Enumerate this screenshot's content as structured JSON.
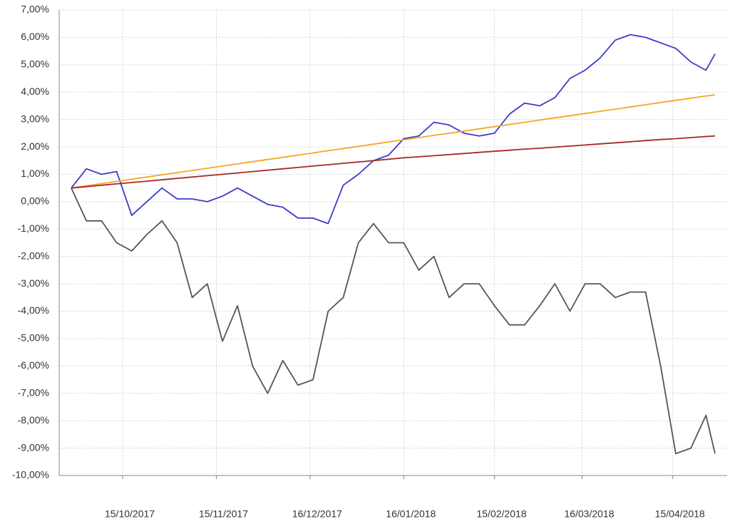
{
  "chart_data": {
    "type": "line",
    "x": [
      "28/09/2017",
      "03/10/2017",
      "08/10/2017",
      "13/10/2017",
      "18/10/2017",
      "23/10/2017",
      "28/10/2017",
      "02/11/2017",
      "07/11/2017",
      "12/11/2017",
      "17/11/2017",
      "22/11/2017",
      "27/11/2017",
      "02/12/2017",
      "07/12/2017",
      "12/12/2017",
      "17/12/2017",
      "22/12/2017",
      "27/12/2017",
      "01/01/2018",
      "06/01/2018",
      "11/01/2018",
      "16/01/2018",
      "21/01/2018",
      "26/01/2018",
      "31/01/2018",
      "05/02/2018",
      "10/02/2018",
      "15/02/2018",
      "20/02/2018",
      "25/02/2018",
      "02/03/2018",
      "07/03/2018",
      "12/03/2018",
      "17/03/2018",
      "22/03/2018",
      "27/03/2018",
      "01/04/2018",
      "06/04/2018",
      "11/04/2018",
      "16/04/2018",
      "21/04/2018",
      "26/04/2018",
      "29/04/2018"
    ],
    "series": [
      {
        "color": "#3c3cc8",
        "values": [
          0.5,
          1.2,
          1.0,
          1.1,
          -0.5,
          0.0,
          0.5,
          0.1,
          0.1,
          0.0,
          0.2,
          0.5,
          0.2,
          -0.1,
          -0.2,
          -0.6,
          -0.6,
          -0.8,
          0.6,
          1.0,
          1.5,
          1.7,
          2.3,
          2.4,
          2.9,
          2.8,
          2.5,
          2.4,
          2.5,
          3.2,
          3.6,
          3.5,
          3.8,
          4.5,
          4.8,
          5.25,
          5.9,
          6.1,
          6.0,
          5.8,
          5.6,
          5.1,
          4.8,
          5.4
        ]
      },
      {
        "color": "#f5a623",
        "values": [
          0.5,
          0.58,
          0.66,
          0.74,
          0.82,
          0.9,
          0.98,
          1.06,
          1.14,
          1.22,
          1.3,
          1.38,
          1.46,
          1.54,
          1.62,
          1.7,
          1.78,
          1.86,
          1.94,
          2.02,
          2.1,
          2.18,
          2.26,
          2.34,
          2.42,
          2.5,
          2.58,
          2.66,
          2.74,
          2.82,
          2.9,
          2.98,
          3.06,
          3.14,
          3.22,
          3.3,
          3.38,
          3.46,
          3.54,
          3.62,
          3.7,
          3.78,
          3.86,
          3.9
        ]
      },
      {
        "color": "#a52a2a",
        "values": [
          0.5,
          0.55,
          0.6,
          0.65,
          0.7,
          0.75,
          0.8,
          0.85,
          0.9,
          0.95,
          1.0,
          1.05,
          1.1,
          1.15,
          1.2,
          1.25,
          1.3,
          1.35,
          1.4,
          1.45,
          1.5,
          1.55,
          1.6,
          1.64,
          1.68,
          1.72,
          1.76,
          1.8,
          1.84,
          1.88,
          1.92,
          1.95,
          1.99,
          2.03,
          2.07,
          2.11,
          2.15,
          2.19,
          2.23,
          2.27,
          2.3,
          2.34,
          2.38,
          2.4
        ]
      },
      {
        "color": "#555555",
        "values": [
          0.5,
          -0.7,
          -0.7,
          -1.5,
          -1.8,
          -1.2,
          -0.7,
          -1.5,
          -3.5,
          -3.0,
          -5.1,
          -3.8,
          -6.0,
          -7.0,
          -5.8,
          -6.7,
          -6.5,
          -4.0,
          -3.5,
          -1.5,
          -0.8,
          -1.5,
          -1.5,
          -2.5,
          -2.0,
          -3.5,
          -3.0,
          -3.0,
          -3.8,
          -4.5,
          -4.5,
          -3.8,
          -3.0,
          -4.0,
          -3.0,
          -3.0,
          -3.5,
          -3.3,
          -3.3,
          -6.0,
          -9.2,
          -9.0,
          -7.8,
          -9.2
        ]
      }
    ],
    "xlim": [
      "24/09/2017",
      "03/05/2018"
    ],
    "xticks": [
      "15/10/2017",
      "15/11/2017",
      "16/12/2017",
      "16/01/2018",
      "15/02/2018",
      "16/03/2018",
      "15/04/2018"
    ],
    "ylim": [
      -10,
      7
    ],
    "yticks": [
      {
        "value": 7,
        "label": "7,00%"
      },
      {
        "value": 6,
        "label": "6,00%"
      },
      {
        "value": 5,
        "label": "5,00%"
      },
      {
        "value": 4,
        "label": "4,00%"
      },
      {
        "value": 3,
        "label": "3,00%"
      },
      {
        "value": 2,
        "label": "2,00%"
      },
      {
        "value": 1,
        "label": "1,00%"
      },
      {
        "value": 0,
        "label": "0,00%"
      },
      {
        "value": -1,
        "label": "-1,00%"
      },
      {
        "value": -2,
        "label": "-2,00%"
      },
      {
        "value": -3,
        "label": "-3,00%"
      },
      {
        "value": -4,
        "label": "-4,00%"
      },
      {
        "value": -5,
        "label": "-5,00%"
      },
      {
        "value": -6,
        "label": "-6,00%"
      },
      {
        "value": -7,
        "label": "-7,00%"
      },
      {
        "value": -8,
        "label": "-8,00%"
      },
      {
        "value": -9,
        "label": "-9,00%"
      },
      {
        "value": -10,
        "label": "-10,00%"
      }
    ],
    "grid": true
  }
}
